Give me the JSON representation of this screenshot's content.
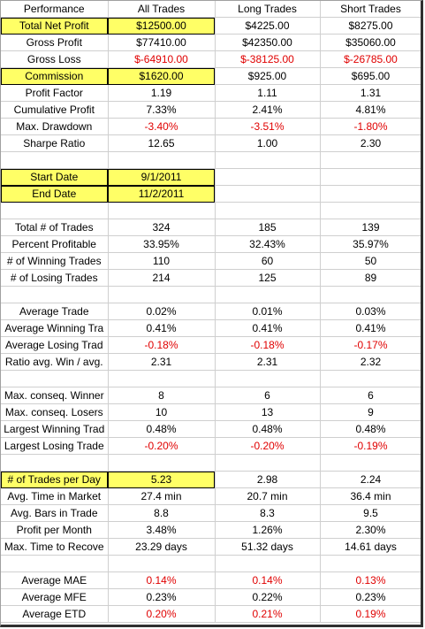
{
  "header": {
    "label": "Performance",
    "col1": "All Trades",
    "col2": "Long Trades",
    "col3": "Short Trades"
  },
  "rows": [
    {
      "label": "Total Net Profit",
      "all": "$12500.00",
      "long": "$4225.00",
      "short": "$8275.00",
      "hl_label": true,
      "hl_all": true
    },
    {
      "label": "Gross Profit",
      "all": "$77410.00",
      "long": "$42350.00",
      "short": "$35060.00"
    },
    {
      "label": "Gross Loss",
      "all": "$-64910.00",
      "long": "$-38125.00",
      "short": "$-26785.00",
      "neg": true
    },
    {
      "label": "Commission",
      "all": "$1620.00",
      "long": "$925.00",
      "short": "$695.00",
      "hl_label": true,
      "hl_all": true
    },
    {
      "label": "Profit Factor",
      "all": "1.19",
      "long": "1.11",
      "short": "1.31"
    },
    {
      "label": "Cumulative Profit",
      "all": "7.33%",
      "long": "2.41%",
      "short": "4.81%"
    },
    {
      "label": "Max. Drawdown",
      "all": "-3.40%",
      "long": "-3.51%",
      "short": "-1.80%",
      "neg": true
    },
    {
      "label": "Sharpe Ratio",
      "all": "12.65",
      "long": "1.00",
      "short": "2.30"
    },
    {
      "gap": true
    },
    {
      "label": "Start Date",
      "all": "9/1/2011",
      "long": "",
      "short": "",
      "hl_label": true,
      "hl_all": true
    },
    {
      "label": "End Date",
      "all": "11/2/2011",
      "long": "",
      "short": "",
      "hl_label": true,
      "hl_all": true
    },
    {
      "gap": true
    },
    {
      "label": "Total # of Trades",
      "all": "324",
      "long": "185",
      "short": "139"
    },
    {
      "label": "Percent Profitable",
      "all": "33.95%",
      "long": "32.43%",
      "short": "35.97%"
    },
    {
      "label": "# of Winning Trades",
      "all": "110",
      "long": "60",
      "short": "50"
    },
    {
      "label": "# of Losing Trades",
      "all": "214",
      "long": "125",
      "short": "89"
    },
    {
      "gap": true
    },
    {
      "label": "Average Trade",
      "all": "0.02%",
      "long": "0.01%",
      "short": "0.03%"
    },
    {
      "label": "Average Winning Tra",
      "all": "0.41%",
      "long": "0.41%",
      "short": "0.41%"
    },
    {
      "label": "Average Losing Trad",
      "all": "-0.18%",
      "long": "-0.18%",
      "short": "-0.17%",
      "neg": true
    },
    {
      "label": "Ratio avg. Win / avg.",
      "all": "2.31",
      "long": "2.31",
      "short": "2.32"
    },
    {
      "gap": true
    },
    {
      "label": "Max. conseq. Winner",
      "all": "8",
      "long": "6",
      "short": "6"
    },
    {
      "label": "Max. conseq. Losers",
      "all": "10",
      "long": "13",
      "short": "9"
    },
    {
      "label": "Largest Winning Trad",
      "all": "0.48%",
      "long": "0.48%",
      "short": "0.48%"
    },
    {
      "label": "Largest Losing Trade",
      "all": "-0.20%",
      "long": "-0.20%",
      "short": "-0.19%",
      "neg": true
    },
    {
      "gap": true
    },
    {
      "label": "# of Trades per Day",
      "all": "5.23",
      "long": "2.98",
      "short": "2.24",
      "hl_label": true,
      "hl_all": true
    },
    {
      "label": "Avg. Time in Market",
      "all": "27.4 min",
      "long": "20.7 min",
      "short": "36.4 min"
    },
    {
      "label": "Avg. Bars in Trade",
      "all": "8.8",
      "long": "8.3",
      "short": "9.5"
    },
    {
      "label": "Profit per Month",
      "all": "3.48%",
      "long": "1.26%",
      "short": "2.30%"
    },
    {
      "label": "Max. Time to Recove",
      "all": "23.29 days",
      "long": "51.32 days",
      "short": "14.61 days"
    },
    {
      "gap": true
    },
    {
      "label": "Average MAE",
      "all": "0.14%",
      "long": "0.14%",
      "short": "0.13%",
      "neg": true
    },
    {
      "label": "Average MFE",
      "all": "0.23%",
      "long": "0.22%",
      "short": "0.23%"
    },
    {
      "label": "Average ETD",
      "all": "0.20%",
      "long": "0.21%",
      "short": "0.19%",
      "neg": true
    }
  ],
  "colors": {
    "highlight": "#ffff66",
    "negative": "#e00000",
    "grid_line": "#cfcfcf"
  }
}
